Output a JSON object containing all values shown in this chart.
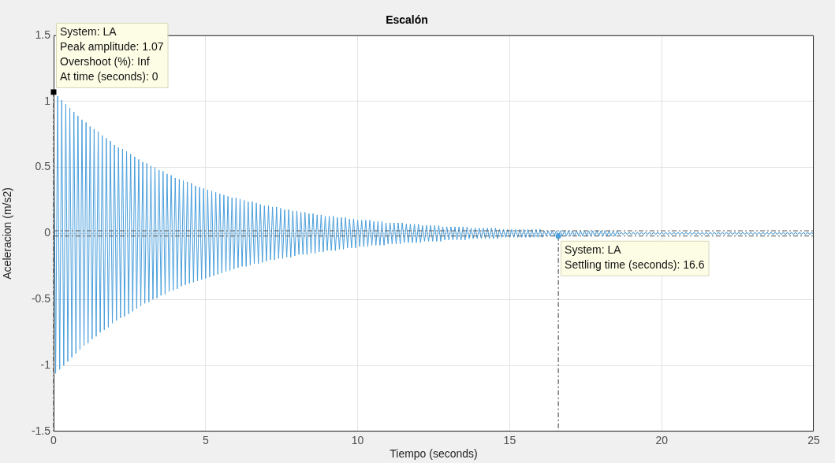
{
  "chart_data": {
    "type": "line",
    "title": "Escalón",
    "xlabel": "Tiempo (seconds)",
    "ylabel": "Aceleracion (m/s2)",
    "xlim": [
      0,
      25
    ],
    "xticks": [
      0,
      5,
      10,
      15,
      20,
      25
    ],
    "ylim": [
      -1.5,
      1.5
    ],
    "yticks": [
      -1.5,
      -1,
      -0.5,
      0,
      0.5,
      1,
      1.5
    ],
    "grid": true,
    "x": [
      0,
      0.067,
      0.133,
      0.2,
      0.267,
      0.333,
      0.4,
      0.467,
      0.533,
      0.6,
      0.667,
      0.733,
      0.8,
      0.867,
      0.933,
      1,
      1.067,
      1.133,
      1.2,
      1.267,
      1.333,
      1.4,
      1.467,
      1.533,
      1.6,
      1.667,
      1.733,
      1.8,
      1.867,
      1.933,
      2,
      2.067,
      2.133,
      2.2,
      2.267,
      2.333,
      2.4,
      2.467,
      2.533,
      2.6,
      2.667,
      2.733,
      2.8,
      2.867,
      2.933,
      3,
      3.067,
      3.133,
      3.2,
      3.267,
      3.333,
      3.4,
      3.467,
      3.533,
      3.6,
      3.667,
      3.733,
      3.8,
      3.867,
      3.933,
      4,
      4.067,
      4.133,
      4.2,
      4.267,
      4.333,
      4.4,
      4.467,
      4.533,
      4.6,
      4.667,
      4.733,
      4.8,
      4.867,
      4.933,
      5,
      5.067,
      5.133,
      5.2,
      5.267,
      5.333,
      5.4,
      5.467,
      5.533,
      5.6,
      5.667,
      5.733,
      5.8,
      5.867,
      5.933,
      6,
      6.067,
      6.133,
      6.2,
      6.267,
      6.333,
      6.4,
      6.467,
      6.533,
      6.6,
      6.667,
      6.733,
      6.8,
      6.867,
      6.933,
      7,
      7.067,
      7.133,
      7.2,
      7.267,
      7.333,
      7.4,
      7.467,
      7.533,
      7.6,
      7.667,
      7.733,
      7.8,
      7.867,
      7.933,
      8,
      8.067,
      8.133,
      8.2,
      8.267,
      8.333,
      8.4,
      8.467,
      8.533,
      8.6,
      8.667,
      8.733,
      8.8,
      8.867,
      8.933,
      9,
      9.067,
      9.133,
      9.2,
      9.267,
      9.333,
      9.4,
      9.467,
      9.533,
      9.6,
      9.667,
      9.733,
      9.8,
      9.867,
      9.933,
      10,
      10.067,
      10.133,
      10.2,
      10.267,
      10.333,
      10.4,
      10.467,
      10.533,
      10.6,
      10.667,
      10.733,
      10.8,
      10.867,
      10.933,
      11,
      11.067,
      11.133,
      11.2,
      11.267,
      11.333,
      11.4,
      11.467,
      11.533,
      11.6,
      11.667,
      11.733,
      11.8,
      11.867,
      11.933,
      12,
      12.067,
      12.133,
      12.2,
      12.267,
      12.333,
      12.4,
      12.467,
      12.533,
      12.6,
      12.667,
      12.733,
      12.8,
      12.867,
      12.933,
      13,
      13.067,
      13.133,
      13.2,
      13.267,
      13.333,
      13.4,
      13.467,
      13.533,
      13.6,
      13.667,
      13.733,
      13.8,
      13.867,
      13.933,
      14,
      14.067,
      14.133,
      14.2,
      14.267,
      14.333,
      14.4,
      14.467,
      14.533,
      14.6,
      14.667,
      14.733,
      14.8,
      14.867,
      14.933,
      15,
      15.067,
      15.133,
      15.2,
      15.267,
      15.333,
      15.4,
      15.467,
      15.533,
      15.6,
      15.667,
      15.733,
      15.8,
      15.867,
      15.933,
      16,
      16.067,
      16.133,
      16.2,
      16.267,
      16.333,
      16.4,
      16.467,
      16.533,
      16.6,
      16.667,
      16.733,
      16.8,
      16.867,
      16.933,
      17,
      17.067,
      17.133,
      17.2,
      17.267,
      17.333,
      17.4,
      17.467,
      17.533,
      17.6,
      17.667,
      17.733,
      17.8,
      17.867,
      17.933,
      18,
      18.067,
      18.133,
      18.2,
      18.267,
      18.333,
      18.4,
      18.467,
      18.533,
      18.6,
      18.667,
      18.733,
      18.8,
      18.867,
      18.933,
      19,
      19.067,
      19.133,
      19.2,
      19.267,
      19.333,
      19.4,
      19.467,
      19.533,
      19.6,
      19.667,
      19.733,
      19.8,
      19.867,
      19.933,
      20,
      20.067,
      20.133,
      20.2,
      20.267,
      20.333,
      20.4,
      20.467,
      20.533,
      20.6,
      20.667,
      20.733,
      20.8,
      20.867,
      20.933,
      21,
      21.067,
      21.133,
      21.2,
      21.267,
      21.333,
      21.4,
      21.467,
      21.533,
      21.6,
      21.667,
      21.733,
      21.8,
      21.867,
      21.933,
      22,
      22.067,
      22.133,
      22.2,
      22.267,
      22.333,
      22.4,
      22.467,
      22.533,
      22.6,
      22.667,
      22.733,
      22.8,
      22.867,
      22.933,
      23,
      23.067,
      23.133,
      23.2,
      23.267,
      23.333,
      23.4,
      23.467,
      23.533,
      23.6,
      23.667,
      23.733,
      23.8,
      23.867,
      23.933,
      24,
      24.067,
      24.133,
      24.2,
      24.267,
      24.333,
      24.4,
      24.467,
      24.533,
      24.6,
      24.667,
      24.733,
      24.8,
      24.867,
      24.933,
      25
    ],
    "series": [
      {
        "color": "#4a9fdc",
        "values": [
          1.07,
          -1.06,
          1.04,
          -1.03,
          1.01,
          -1.0,
          0.98,
          -0.97,
          0.95,
          -0.94,
          0.92,
          -0.91,
          0.89,
          -0.88,
          0.86,
          -0.85,
          0.84,
          -0.83,
          0.81,
          -0.8,
          0.79,
          -0.78,
          0.77,
          -0.75,
          0.74,
          -0.73,
          0.72,
          -0.71,
          0.7,
          -0.68,
          0.67,
          -0.66,
          0.65,
          -0.64,
          0.64,
          -0.63,
          0.62,
          -0.61,
          0.6,
          -0.59,
          0.58,
          -0.57,
          0.56,
          -0.55,
          0.54,
          -0.53,
          0.53,
          -0.52,
          0.51,
          -0.5,
          0.5,
          -0.49,
          0.48,
          -0.47,
          0.47,
          -0.46,
          0.45,
          -0.44,
          0.44,
          -0.43,
          0.42,
          -0.42,
          0.41,
          -0.4,
          0.4,
          -0.39,
          0.39,
          -0.38,
          0.38,
          -0.37,
          0.36,
          -0.36,
          0.35,
          -0.35,
          0.34,
          -0.34,
          0.33,
          -0.33,
          0.32,
          -0.32,
          0.31,
          -0.31,
          0.3,
          -0.3,
          0.29,
          -0.29,
          0.28,
          -0.28,
          0.27,
          -0.27,
          0.27,
          -0.26,
          0.26,
          -0.25,
          0.25,
          -0.25,
          0.24,
          -0.24,
          0.24,
          -0.23,
          0.23,
          -0.23,
          0.22,
          -0.22,
          0.21,
          -0.21,
          0.21,
          -0.2,
          0.2,
          -0.2,
          0.2,
          -0.19,
          0.19,
          -0.19,
          0.18,
          -0.18,
          0.18,
          -0.18,
          0.17,
          -0.17,
          0.17,
          -0.16,
          0.16,
          -0.16,
          0.16,
          -0.16,
          0.15,
          -0.15,
          0.15,
          -0.15,
          0.14,
          -0.14,
          0.14,
          -0.14,
          0.13,
          -0.13,
          0.13,
          -0.13,
          0.13,
          -0.13,
          0.12,
          -0.12,
          0.12,
          -0.12,
          0.12,
          -0.11,
          0.11,
          -0.11,
          0.11,
          -0.11,
          0.1,
          -0.1,
          0.1,
          -0.1,
          0.1,
          -0.1,
          0.1,
          -0.09,
          0.09,
          -0.09,
          0.09,
          -0.09,
          0.09,
          -0.09,
          0.08,
          -0.08,
          0.08,
          -0.08,
          0.08,
          -0.08,
          0.08,
          -0.08,
          0.08,
          -0.07,
          0.07,
          -0.07,
          0.07,
          -0.07,
          0.07,
          -0.07,
          0.07,
          -0.07,
          0.06,
          -0.06,
          0.06,
          -0.06,
          0.06,
          -0.06,
          0.06,
          -0.06,
          0.06,
          -0.06,
          0.05,
          -0.05,
          0.05,
          -0.05,
          0.05,
          -0.05,
          0.05,
          -0.05,
          0.05,
          -0.05,
          0.05,
          -0.05,
          0.05,
          -0.04,
          0.04,
          -0.04,
          0.04,
          -0.04,
          0.04,
          -0.04,
          0.04,
          -0.04,
          0.04,
          -0.04,
          0.04,
          -0.04,
          0.04,
          -0.04,
          0.03,
          -0.03,
          0.03,
          -0.03,
          0.03,
          -0.03,
          0.03,
          -0.03,
          0.03,
          -0.03,
          0.03,
          -0.03,
          0.03,
          -0.03,
          0.03,
          -0.03,
          0.03,
          -0.03,
          0.03,
          -0.03,
          0.03,
          -0.03,
          0.02,
          -0.02,
          0.02,
          -0.02,
          0.02,
          -0.02,
          0.02,
          -0.02,
          0.02,
          -0.02,
          0.02,
          -0.02,
          0.02,
          -0.02,
          0.02,
          -0.02,
          0.02,
          -0.02,
          0.02,
          -0.02,
          0.02,
          -0.02,
          0.02,
          -0.02,
          0.02,
          -0.02,
          0.02,
          -0.02,
          0.02,
          -0.02,
          0.02,
          -0.02,
          0.02,
          -0.02,
          0.02,
          -0.02,
          0.02,
          -0.01,
          0.01,
          -0.01,
          0.01,
          -0.01,
          0.01,
          -0.01,
          0.01,
          -0.01,
          0.01,
          -0.01,
          0.01,
          -0.01,
          0.01,
          -0.01,
          0.01,
          -0.01,
          0.01,
          -0.01,
          0.01,
          -0.01,
          0.01,
          -0.01,
          0.01,
          -0.01,
          0.01,
          -0.01,
          0.01,
          -0.01,
          0.01,
          -0.01,
          0.01,
          -0.01,
          0.01,
          -0.01,
          0.01,
          -0.01,
          0.01,
          -0.01,
          0.01,
          -0.01,
          0.01,
          -0.01,
          0.01,
          -0.01,
          0.01,
          -0.01,
          0.01,
          -0.01,
          0.01,
          -0.01,
          0.01,
          -0.01,
          0.01,
          -0.01,
          0.01,
          -0.01,
          0.01,
          -0.01,
          0.01,
          -0.01,
          0.01,
          -0.01,
          0.01,
          -0.01,
          0.01,
          -0.01,
          0.01,
          -0.01,
          0.01,
          -0.01,
          0.01,
          -0.01,
          0.01,
          -0.01,
          0.01,
          -0.01,
          0.01,
          -0.01,
          0.01,
          -0.01,
          0.01,
          -0.01,
          0.01,
          -0.01,
          0.01,
          -0.01,
          0.01,
          -0.01,
          0.01,
          -0.01,
          0.01,
          -0.01,
          0.01,
          -0.01,
          0.01,
          -0.01
        ]
      }
    ],
    "ref_lines": [
      {
        "axis": "y",
        "value": 0.02,
        "color": "#555555",
        "line_style": "dashed"
      },
      {
        "axis": "y",
        "value": -0.02,
        "color": "#555555",
        "line_style": "dashed"
      }
    ],
    "annotations": [
      {
        "text": "System: LA\nPeak amplitude: 1.07\nOvershoot (%): Inf\nAt time (seconds): 0",
        "x": 0,
        "y": 1.07
      },
      {
        "text": "System: LA\nSettling time (seconds): 16.6",
        "x": 16.6,
        "y": -0.02
      }
    ]
  }
}
